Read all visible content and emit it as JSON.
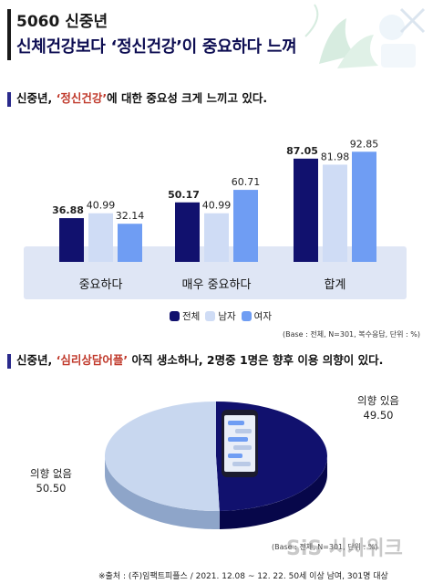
{
  "header": {
    "title_line1": "5060 신중년",
    "title_line2_prefix": "신체건강보다 ",
    "title_line2_highlight": "‘정신건강’",
    "title_line2_suffix": "이 중요하다 느껴"
  },
  "section1": {
    "prefix": "신중년, ",
    "highlight": "‘정신건강’",
    "suffix": "에 대한 중요성 크게 느끼고 있다."
  },
  "section2": {
    "prefix": "신중년, ",
    "highlight": "‘심리상담어플’",
    "suffix": " 아직 생소하나, 2명중 1명은 향후 이용 의향이 있다."
  },
  "legend": {
    "items": [
      {
        "label": "전체",
        "color": "#11116e"
      },
      {
        "label": "남자",
        "color": "#cfdcf5"
      },
      {
        "label": "여자",
        "color": "#6f9df3"
      }
    ]
  },
  "base_note_1": "(Base : 전체, N=301, 복수응답, 단위 : %)",
  "base_note_2": "(Base : 전체, N=301, 단위 : %)",
  "source": "※출처 : (주)임팩트피플스 / 2021. 12.08 ~ 12. 22. 50세 이상 남여, 301명 대상",
  "watermark": "SiS 시사위크",
  "chart_data": [
    {
      "type": "bar",
      "categories": [
        "중요하다",
        "매우 중요하다",
        "합계"
      ],
      "series": [
        {
          "name": "전체",
          "values": [
            36.88,
            50.17,
            87.05
          ],
          "color": "#11116e"
        },
        {
          "name": "남자",
          "values": [
            40.99,
            40.99,
            81.98
          ],
          "color": "#cfdcf5"
        },
        {
          "name": "여자",
          "values": [
            32.14,
            60.71,
            92.85
          ],
          "color": "#6f9df3"
        }
      ],
      "ylim": [
        0,
        100
      ],
      "legend_position": "bottom-right"
    },
    {
      "type": "pie",
      "slices": [
        {
          "label": "의향 있음",
          "value": 49.5,
          "color": "#11116e"
        },
        {
          "label": "의향 없음",
          "value": 50.5,
          "color": "#c8d7ef"
        }
      ]
    }
  ]
}
